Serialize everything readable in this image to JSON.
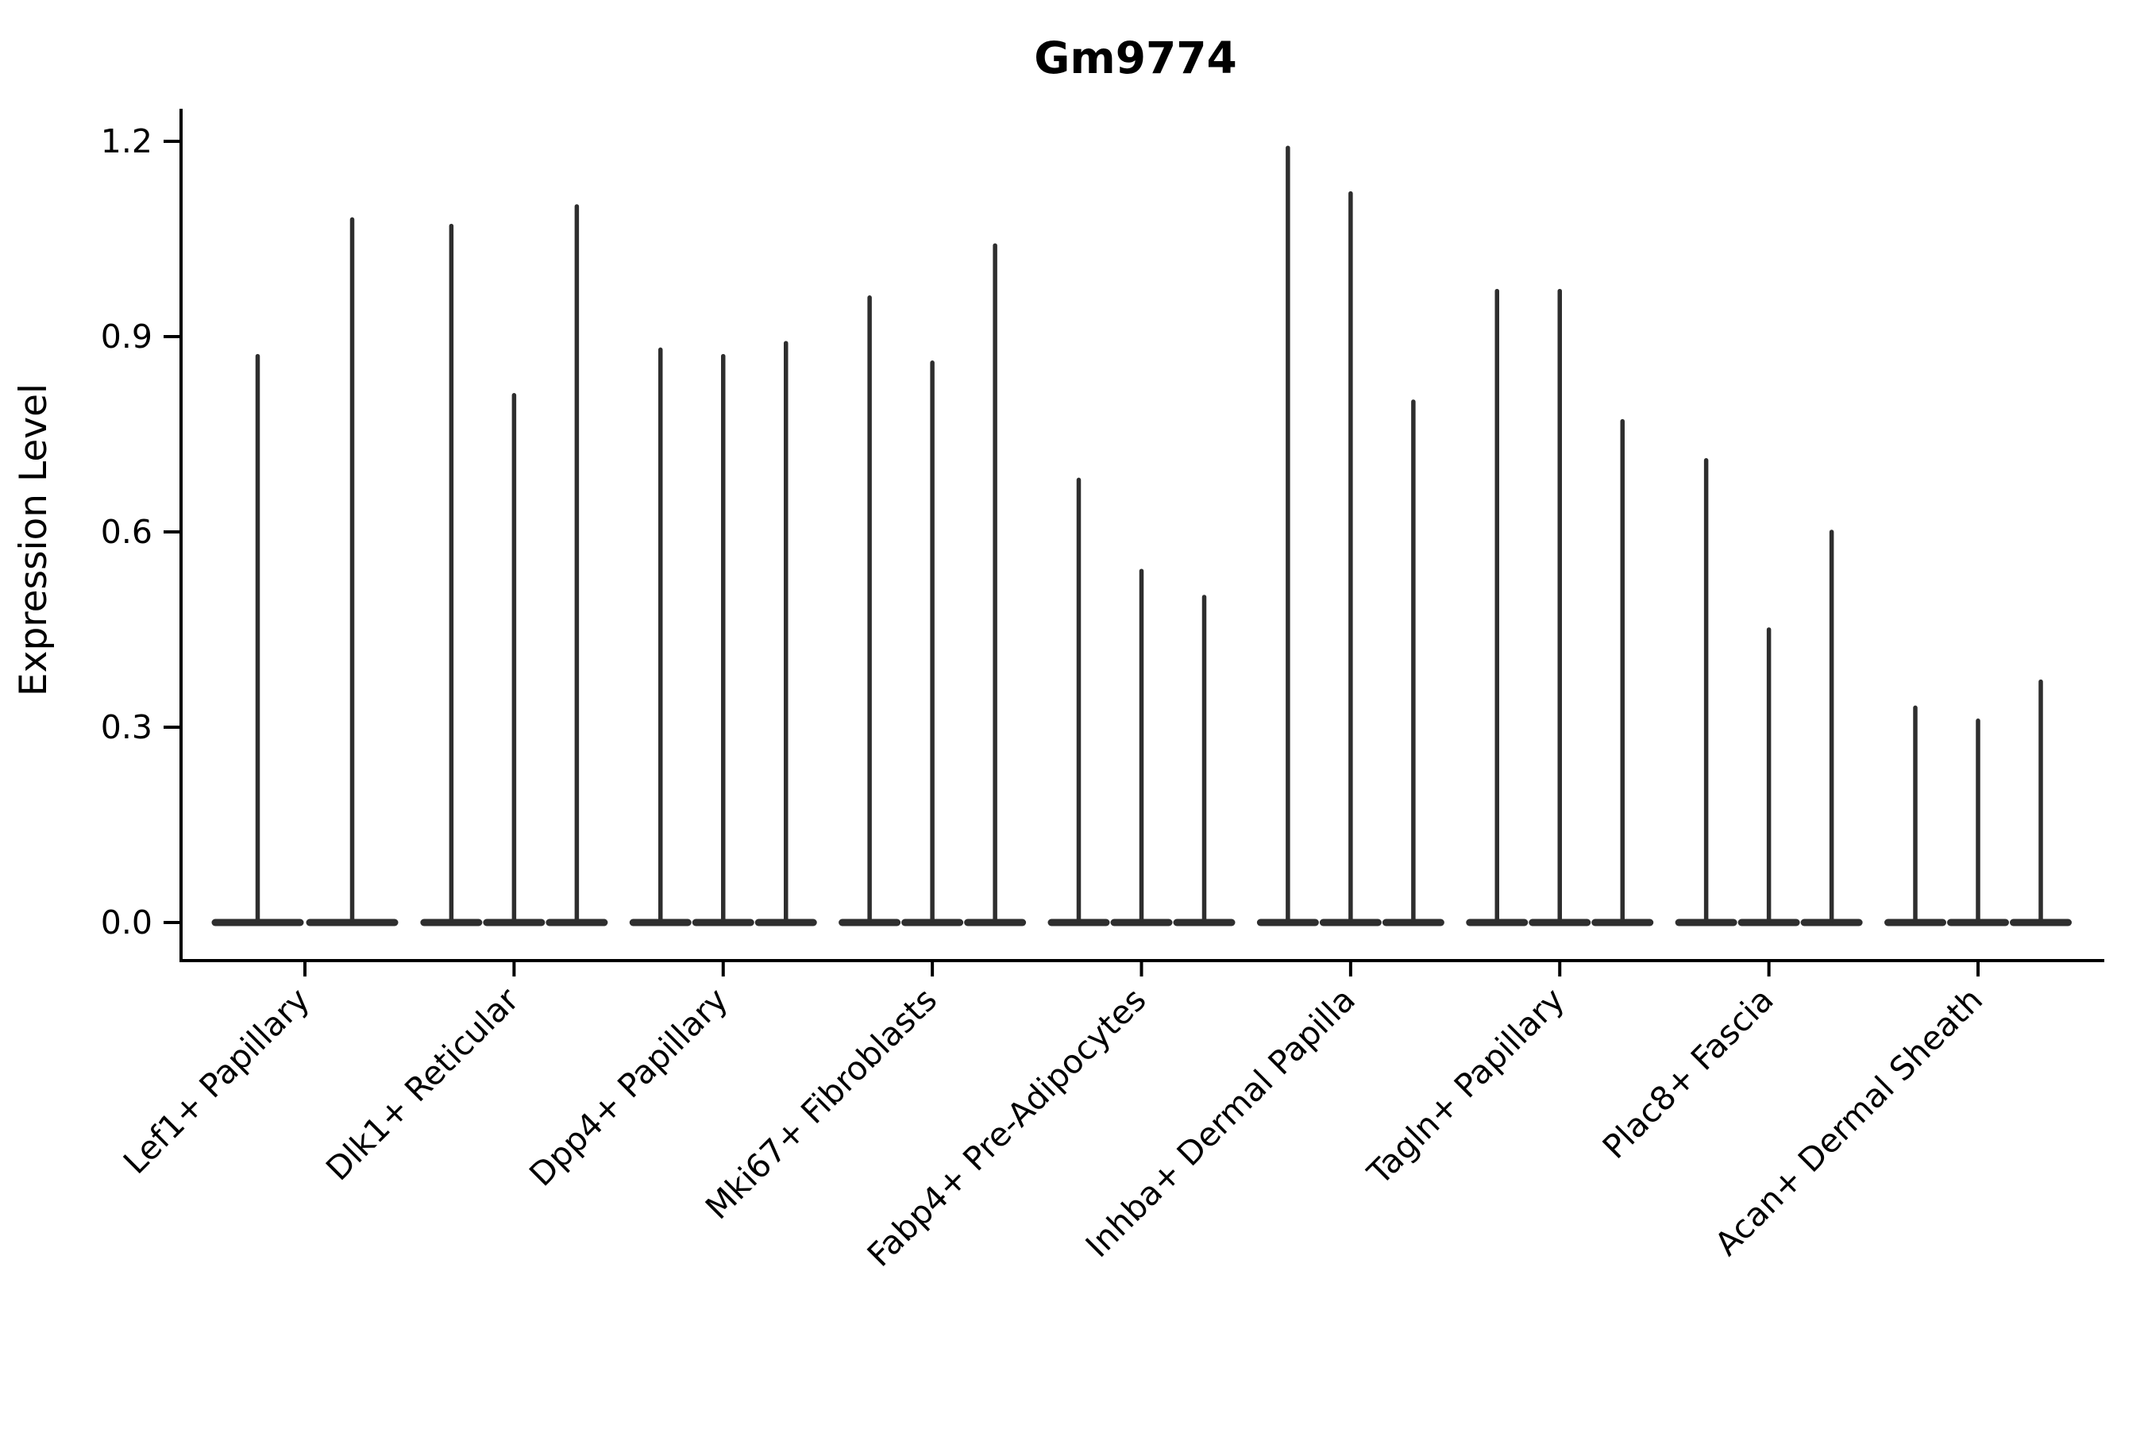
{
  "chart_data": {
    "type": "violin",
    "title": "Gm9774",
    "ylabel": "Expression Level",
    "xlabel": "",
    "yticks": [
      0.0,
      0.3,
      0.6,
      0.9,
      1.2
    ],
    "ylim": [
      -0.06,
      1.25
    ],
    "grid": false,
    "legend_position": "none",
    "categories": [
      "Lef1+ Papillary",
      "Dlk1+ Reticular",
      "Dpp4+ Papillary",
      "Mki67+ Fibroblasts",
      "Fabp4+ Pre-Adipocytes",
      "Inhba+ Dermal Papilla",
      "Tagln+ Papillary",
      "Plac8+ Fascia",
      "Acan+ Dermal Sheath"
    ],
    "groups": [
      {
        "label": "Lef1+ Papillary",
        "values": [
          0.87,
          1.08
        ]
      },
      {
        "label": "Dlk1+ Reticular",
        "values": [
          1.07,
          0.81,
          1.1
        ]
      },
      {
        "label": "Dpp4+ Papillary",
        "values": [
          0.88,
          0.87,
          0.89
        ]
      },
      {
        "label": "Mki67+ Fibroblasts",
        "values": [
          0.96,
          0.86,
          1.04
        ]
      },
      {
        "label": "Fabp4+ Pre-Adipocytes",
        "values": [
          0.68,
          0.54,
          0.5
        ]
      },
      {
        "label": "Inhba+ Dermal Papilla",
        "values": [
          1.19,
          1.12,
          0.8
        ]
      },
      {
        "label": "Tagln+ Papillary",
        "values": [
          0.97,
          0.97,
          0.77
        ]
      },
      {
        "label": "Plac8+ Fascia",
        "values": [
          0.71,
          0.45,
          0.6
        ]
      },
      {
        "label": "Acan+ Dermal Sheath",
        "values": [
          0.33,
          0.31,
          0.37
        ]
      }
    ],
    "violin_baseline_value": 0.0,
    "description": "Each violin is collapsed to a thin vertical spike rising from a flat base at expression 0; values are the maximum expression level of each spike."
  },
  "style": {
    "violin_color": "#2e2e2e",
    "axis_color": "#000000",
    "text_color": "#000000",
    "background": "#ffffff"
  }
}
